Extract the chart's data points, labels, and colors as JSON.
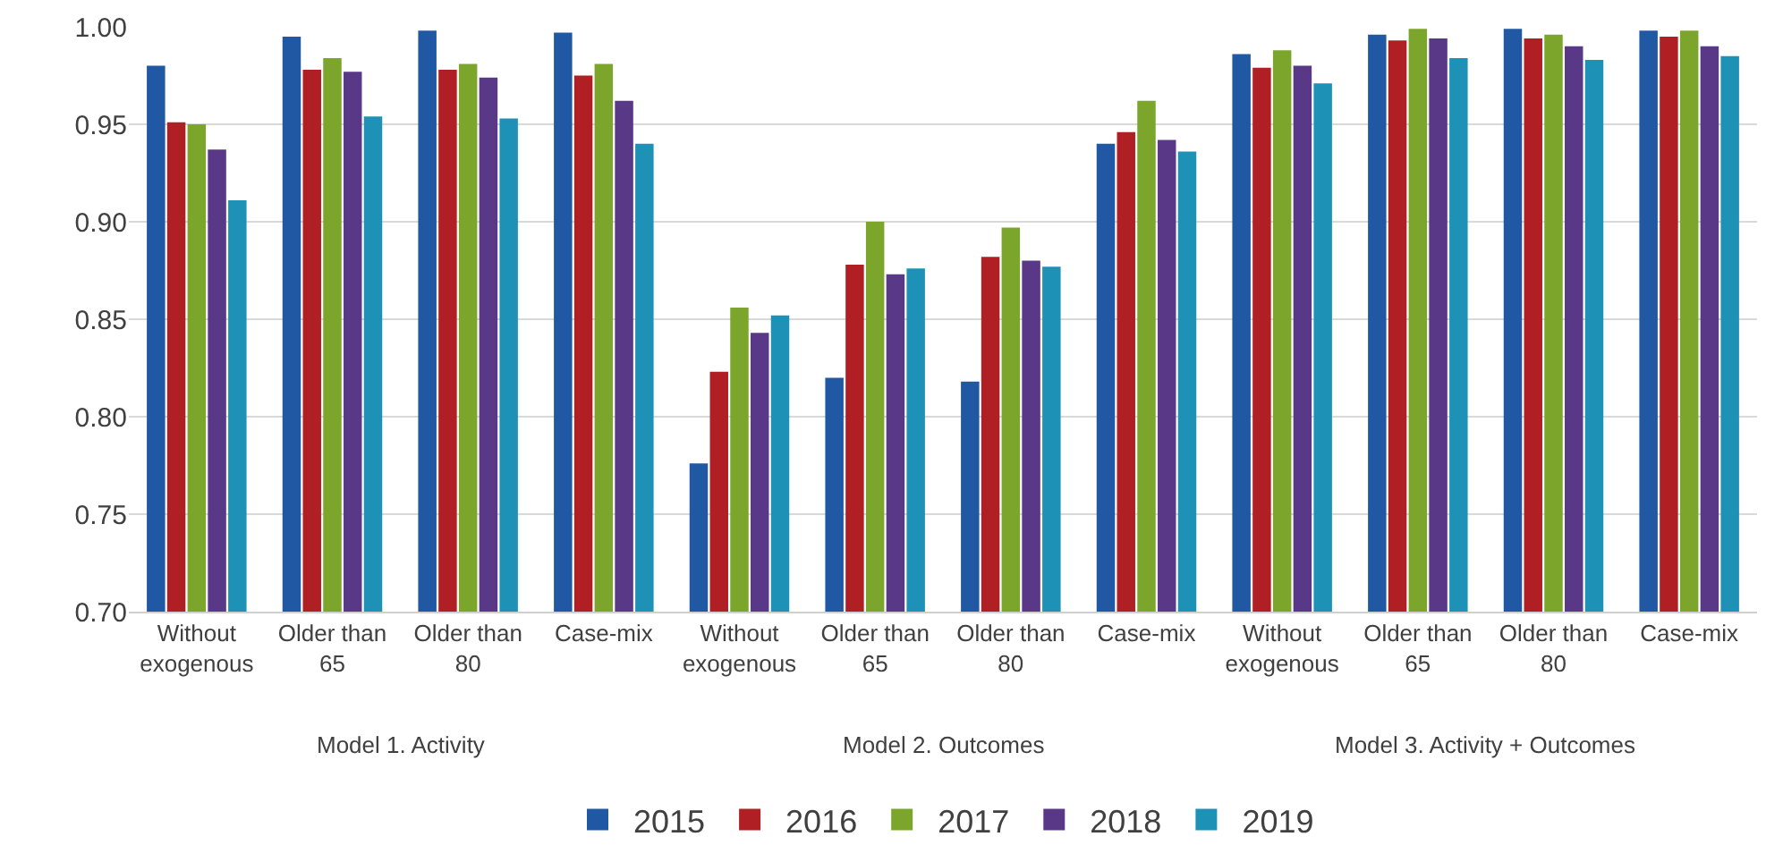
{
  "chart_data": {
    "type": "bar",
    "categories": [
      "Without exogenous",
      "Older than 65",
      "Older than 80",
      "Case-mix",
      "Without exogenous",
      "Older than 65",
      "Older than 80",
      "Case-mix",
      "Without exogenous",
      "Older than 65",
      "Older than 80",
      "Case-mix"
    ],
    "annotations": [
      "Model 1. Activity",
      "Model 2. Outcomes",
      "Model 3. Activity + Outcomes"
    ],
    "series": [
      {
        "name": "2015",
        "color": "#2158a4",
        "values": [
          0.98,
          0.995,
          0.998,
          0.997,
          0.776,
          0.82,
          0.818,
          0.94,
          0.986,
          0.996,
          0.999,
          0.998
        ]
      },
      {
        "name": "2016",
        "color": "#b01f24",
        "values": [
          0.951,
          0.978,
          0.978,
          0.975,
          0.823,
          0.878,
          0.882,
          0.946,
          0.979,
          0.993,
          0.994,
          0.995
        ]
      },
      {
        "name": "2017",
        "color": "#7ca52b",
        "values": [
          0.95,
          0.984,
          0.981,
          0.981,
          0.856,
          0.9,
          0.897,
          0.962,
          0.988,
          0.999,
          0.996,
          0.998
        ]
      },
      {
        "name": "2018",
        "color": "#5a3888",
        "values": [
          0.937,
          0.977,
          0.974,
          0.962,
          0.843,
          0.873,
          0.88,
          0.942,
          0.98,
          0.994,
          0.99,
          0.99
        ]
      },
      {
        "name": "2019",
        "color": "#1e92b6",
        "values": [
          0.911,
          0.954,
          0.953,
          0.94,
          0.852,
          0.876,
          0.877,
          0.936,
          0.971,
          0.984,
          0.983,
          0.985
        ]
      }
    ],
    "ylim": [
      0.7,
      1.0
    ],
    "yticks": [
      {
        "value": 0.7,
        "label": "0.70"
      },
      {
        "value": 0.75,
        "label": "0.75"
      },
      {
        "value": 0.8,
        "label": "0.80"
      },
      {
        "value": 0.85,
        "label": "0.85"
      },
      {
        "value": 0.9,
        "label": "0.90"
      },
      {
        "value": 0.95,
        "label": "0.95"
      },
      {
        "value": 1.0,
        "label": "1.00"
      }
    ],
    "grid": "y",
    "legend": "bottom"
  }
}
